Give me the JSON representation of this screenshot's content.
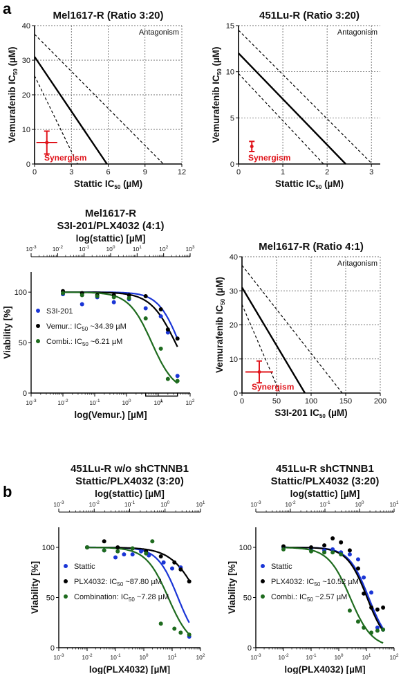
{
  "panel_labels": {
    "a": "a",
    "b": "b"
  },
  "colors": {
    "stattic": "#1a35d6",
    "vemur": "#000000",
    "combi": "#1e6b1e",
    "marker_red": "#e0141b"
  },
  "chart_data": [
    {
      "id": "iso1",
      "type": "isobologram",
      "title": "Mel1617-R (Ratio 3:20)",
      "xlabel_main": "Stattic IC",
      "xlabel_sub": "50",
      "xlabel_unit": " (µM)",
      "ylabel_main": "Vemurafenib IC",
      "ylabel_sub": "50",
      "ylabel_unit": " (µM)",
      "xlim": [
        0,
        12
      ],
      "ylim": [
        0,
        40
      ],
      "xticks": [
        0,
        3,
        6,
        9,
        12
      ],
      "yticks": [
        0,
        10,
        20,
        30,
        40
      ],
      "xtick_labels": [
        "0",
        "3",
        "6",
        "9",
        "12"
      ],
      "ytick_labels": [
        "0",
        "10",
        "20",
        "30",
        "40"
      ],
      "additivity_line": [
        [
          0,
          31
        ],
        [
          5.9,
          0
        ]
      ],
      "ci_lines": [
        [
          [
            0,
            37.5
          ],
          [
            10.5,
            0
          ]
        ],
        [
          [
            0,
            25.5
          ],
          [
            3.5,
            0
          ]
        ]
      ],
      "point": {
        "x": 1.0,
        "y": 6.2,
        "xerr": 0.85,
        "yerr": 3.3
      },
      "antagonism_label": "Antagonism",
      "synergism_label": "Synergism"
    },
    {
      "id": "iso2",
      "type": "isobologram",
      "title": "451Lu-R (Ratio 3:20)",
      "xlabel_main": "Stattic IC",
      "xlabel_sub": "50",
      "xlabel_unit": " (µM)",
      "ylabel_main": "Vemurafenib IC",
      "ylabel_sub": "50",
      "ylabel_unit": " (µM)",
      "xlim": [
        0,
        3.2
      ],
      "ylim": [
        0,
        15
      ],
      "xticks": [
        0,
        1,
        2,
        3
      ],
      "yticks": [
        0,
        5,
        10,
        15
      ],
      "xtick_labels": [
        "0",
        "1",
        "2",
        "3"
      ],
      "ytick_labels": [
        "0",
        "5",
        "10",
        "15"
      ],
      "additivity_line": [
        [
          0,
          12
        ],
        [
          2.42,
          0
        ]
      ],
      "ci_lines": [
        [
          [
            0,
            14.5
          ],
          [
            3.02,
            0
          ]
        ],
        [
          [
            0,
            9.8
          ],
          [
            1.92,
            0
          ]
        ]
      ],
      "point": {
        "x": 0.3,
        "y": 1.9,
        "xerr": 0.0,
        "yerr": 0.55
      },
      "antagonism_label": "Antagonism",
      "synergism_label": "Synergism"
    },
    {
      "id": "dose1",
      "type": "dose-response",
      "title_lines": [
        "Mel1617-R",
        "S3I-201/PLX4032 (4:1)"
      ],
      "top_axis_label": "log(stattic) [µM]",
      "xlabel": "log(Vemur.) [µM]",
      "ylabel": "Viability [%]",
      "xlim_log": [
        -3,
        2
      ],
      "top_xlim_log": [
        -3,
        3
      ],
      "ylim": [
        0,
        120
      ],
      "yticks": [
        0,
        50,
        100
      ],
      "bottom_ticks": [
        "10",
        "10",
        "10",
        "10",
        "10",
        "10"
      ],
      "bottom_exps": [
        "-3",
        "-2",
        "-1",
        "0",
        "1",
        "2"
      ],
      "top_ticks": [
        "10",
        "10",
        "10",
        "10",
        "10",
        "10",
        "10"
      ],
      "top_exps": [
        "-3",
        "-2",
        "-1",
        "0",
        "1",
        "2",
        "3"
      ],
      "sig_label": "*",
      "sig_range": [
        4,
        40
      ],
      "legend": [
        {
          "label": "S3I-201",
          "color": "#1a35d6"
        },
        {
          "label": "Vemur.: IC",
          "sub": "50",
          "rest": " ~34.39 µM",
          "color": "#000000"
        },
        {
          "label": "Combi.: IC",
          "sub": "50",
          "rest": " ~6.21 µM",
          "color": "#1e6b1e"
        }
      ],
      "series": [
        {
          "name": "S3I-201",
          "color": "#1a35d6",
          "ic50": 45,
          "hill": 1.3,
          "points": [
            [
              0.01,
              98
            ],
            [
              0.04,
              88
            ],
            [
              0.12,
              95
            ],
            [
              0.4,
              90
            ],
            [
              1.2,
              93
            ],
            [
              4,
              84
            ],
            [
              12,
              76
            ],
            [
              20,
              60
            ],
            [
              40,
              17
            ]
          ]
        },
        {
          "name": "Vemur.",
          "color": "#000000",
          "ic50": 34.39,
          "hill": 1.1,
          "points": [
            [
              0.01,
              101
            ],
            [
              0.04,
              99
            ],
            [
              0.12,
              97
            ],
            [
              0.4,
              97
            ],
            [
              1.2,
              97
            ],
            [
              4,
              96
            ],
            [
              12,
              83
            ],
            [
              20,
              63
            ],
            [
              40,
              54
            ]
          ]
        },
        {
          "name": "Combi.",
          "color": "#1e6b1e",
          "ic50": 6.21,
          "hill": 1.2,
          "points": [
            [
              0.01,
              99
            ],
            [
              0.04,
              97
            ],
            [
              0.12,
              96
            ],
            [
              0.4,
              95
            ],
            [
              1.2,
              94
            ],
            [
              4,
              74
            ],
            [
              12,
              44
            ],
            [
              20,
              14
            ],
            [
              40,
              12
            ]
          ]
        }
      ]
    },
    {
      "id": "iso3",
      "type": "isobologram",
      "title": "Mel1617-R (Ratio 4:1)",
      "xlabel_main": "S3I-201 IC",
      "xlabel_sub": "50",
      "xlabel_unit": " (µM)",
      "ylabel_main": "Vemurafenib IC",
      "ylabel_sub": "50",
      "ylabel_unit": " (µM)",
      "xlim": [
        0,
        200
      ],
      "ylim": [
        0,
        40
      ],
      "xticks": [
        0,
        50,
        100,
        150,
        200
      ],
      "yticks": [
        0,
        10,
        20,
        30,
        40
      ],
      "xtick_labels": [
        "0",
        "50",
        "100",
        "150",
        "200"
      ],
      "ytick_labels": [
        "0",
        "10",
        "20",
        "30",
        "40"
      ],
      "additivity_line": [
        [
          0,
          31
        ],
        [
          91,
          0
        ]
      ],
      "ci_lines": [
        [
          [
            0,
            37.5
          ],
          [
            145,
            0
          ]
        ],
        [
          [
            0,
            26
          ],
          [
            55,
            0
          ]
        ]
      ],
      "point": {
        "x": 25,
        "y": 6.2,
        "xerr": 20,
        "yerr": 3.2
      },
      "antagonism_label": "Antagonism",
      "synergism_label": "Synergism"
    },
    {
      "id": "dose2",
      "type": "dose-response",
      "title_lines": [
        "451Lu-R w/o shCTNNB1",
        "Stattic/PLX4032 (3:20)"
      ],
      "top_axis_label": "log(stattic) [µM]",
      "xlabel": "log(PLX4032) [µM]",
      "ylabel": "Viability [%]",
      "xlim_log": [
        -3,
        2
      ],
      "top_xlim_log": [
        -3,
        1
      ],
      "ylim": [
        0,
        120
      ],
      "yticks": [
        0,
        50,
        100
      ],
      "bottom_ticks": [
        "10",
        "10",
        "10",
        "10",
        "10",
        "10"
      ],
      "bottom_exps": [
        "-3",
        "-2",
        "-1",
        "0",
        "1",
        "2"
      ],
      "top_ticks": [
        "10",
        "10",
        "10",
        "10",
        "10"
      ],
      "top_exps": [
        "-3",
        "-2",
        "-1",
        "0",
        "1"
      ],
      "legend": [
        {
          "label": "Stattic",
          "color": "#1a35d6"
        },
        {
          "label": "PLX4032: IC",
          "sub": "50",
          "rest": " ~87.80 µM",
          "color": "#000000"
        },
        {
          "label": "Combination: IC",
          "sub": "50",
          "rest": " ~7.28 µM",
          "color": "#1e6b1e"
        }
      ],
      "series": [
        {
          "name": "Stattic",
          "color": "#1a35d6",
          "ic50": 16,
          "hill": 1.2,
          "points": [
            [
              0.01,
              100
            ],
            [
              0.04,
              97
            ],
            [
              0.1,
              90
            ],
            [
              0.2,
              93
            ],
            [
              0.4,
              93
            ],
            [
              0.8,
              96
            ],
            [
              1.5,
              92
            ],
            [
              5,
              85
            ],
            [
              10,
              79
            ],
            [
              20,
              80
            ],
            [
              40,
              11
            ]
          ]
        },
        {
          "name": "PLX4032",
          "color": "#000000",
          "ic50": 87.8,
          "hill": 0.9,
          "points": [
            [
              0.01,
              100
            ],
            [
              0.04,
              106
            ],
            [
              0.12,
              100
            ],
            [
              0.4,
              99
            ],
            [
              1.2,
              96
            ],
            [
              4,
              91
            ],
            [
              12,
              85
            ],
            [
              20,
              78
            ],
            [
              40,
              66
            ]
          ]
        },
        {
          "name": "Combination",
          "color": "#1e6b1e",
          "ic50": 7.28,
          "hill": 1.1,
          "points": [
            [
              0.01,
              100
            ],
            [
              0.04,
              97
            ],
            [
              0.12,
              96
            ],
            [
              0.4,
              99
            ],
            [
              1.2,
              94
            ],
            [
              2,
              106
            ],
            [
              4,
              24
            ],
            [
              12,
              19
            ],
            [
              20,
              15
            ],
            [
              40,
              13
            ]
          ]
        }
      ]
    },
    {
      "id": "dose3",
      "type": "dose-response",
      "title_lines": [
        "451Lu-R shCTNNB1",
        "Stattic/PLX4032 (3:20)"
      ],
      "top_axis_label": "log(stattic) [µM]",
      "xlabel": "log(PLX4032) [µM]",
      "ylabel": "Viability [%]",
      "xlim_log": [
        -3,
        2
      ],
      "top_xlim_log": [
        -3,
        1
      ],
      "ylim": [
        0,
        120
      ],
      "yticks": [
        0,
        50,
        100
      ],
      "bottom_ticks": [
        "10",
        "10",
        "10",
        "10",
        "10",
        "10"
      ],
      "bottom_exps": [
        "-3",
        "-2",
        "-1",
        "0",
        "1",
        "2"
      ],
      "top_ticks": [
        "10",
        "10",
        "10",
        "10",
        "10"
      ],
      "top_exps": [
        "-3",
        "-2",
        "-1",
        "0",
        "1"
      ],
      "legend": [
        {
          "label": "Stattic",
          "color": "#1a35d6"
        },
        {
          "label": "PLX4032: IC",
          "sub": "50",
          "rest": " ~10.52 µM",
          "color": "#000000"
        },
        {
          "label": "Combi.: IC",
          "sub": "50",
          "rest": " ~2.57 µM",
          "color": "#1e6b1e"
        }
      ],
      "series": [
        {
          "name": "Stattic",
          "color": "#1a35d6",
          "ic50": 12,
          "hill": 1.2,
          "points": [
            [
              0.01,
              100
            ],
            [
              0.1,
              99
            ],
            [
              0.3,
              97
            ],
            [
              0.6,
              98
            ],
            [
              1.2,
              95
            ],
            [
              2.5,
              93
            ],
            [
              5,
              88
            ],
            [
              8,
              70
            ],
            [
              15,
              55
            ],
            [
              25,
              20
            ],
            [
              40,
              18
            ]
          ]
        },
        {
          "name": "PLX4032",
          "color": "#000000",
          "ic50": 10.52,
          "hill": 1.2,
          "points": [
            [
              0.01,
              101
            ],
            [
              0.1,
              100
            ],
            [
              0.3,
              102
            ],
            [
              0.6,
              109
            ],
            [
              1.2,
              105
            ],
            [
              2.5,
              97
            ],
            [
              5,
              79
            ],
            [
              8,
              54
            ],
            [
              15,
              40
            ],
            [
              25,
              38
            ],
            [
              40,
              40
            ]
          ]
        },
        {
          "name": "Combi.",
          "color": "#1e6b1e",
          "ic50": 2.57,
          "hill": 1.1,
          "points": [
            [
              0.01,
              98
            ],
            [
              0.1,
              96
            ],
            [
              0.3,
              95
            ],
            [
              0.6,
              95
            ],
            [
              1.2,
              93
            ],
            [
              2.5,
              37
            ],
            [
              5,
              26
            ],
            [
              8,
              20
            ],
            [
              15,
              15
            ],
            [
              25,
              17
            ],
            [
              40,
              18
            ]
          ]
        }
      ]
    }
  ]
}
